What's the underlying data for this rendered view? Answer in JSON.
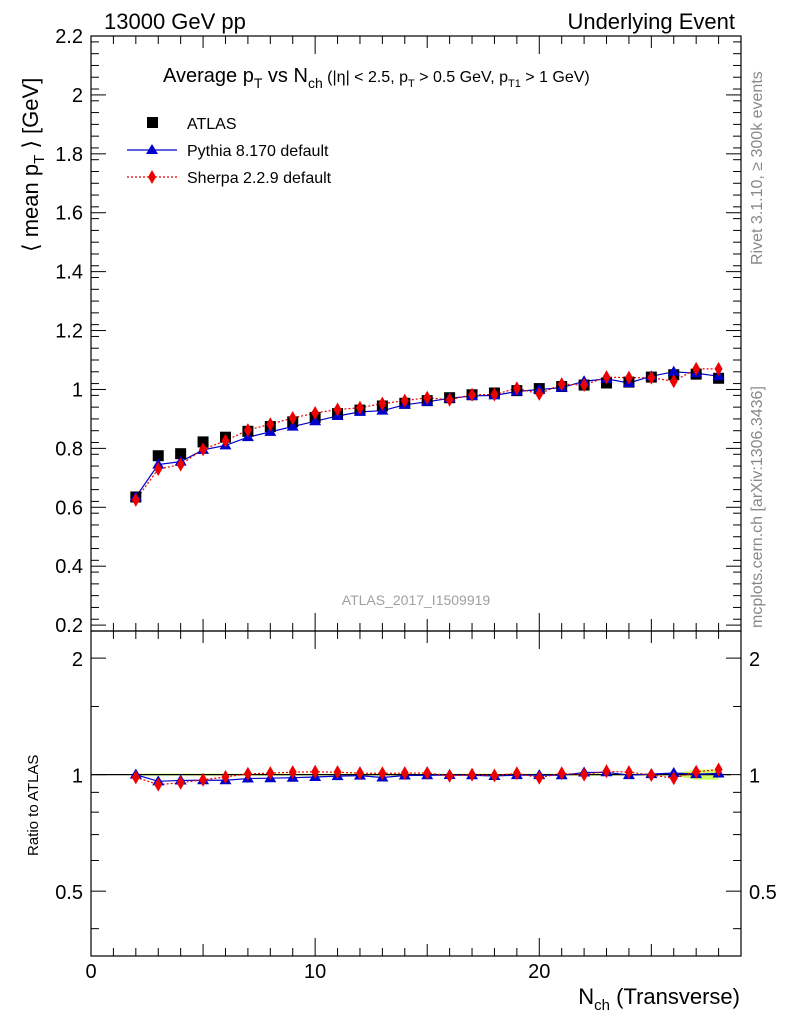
{
  "header": {
    "left": "13000 GeV pp",
    "right": "Underlying Event"
  },
  "side_labels": {
    "rivet": "Rivet 3.1.10, ≥ 300k events",
    "mcplots": "mcplots.cern.ch [arXiv:1306.3436]"
  },
  "chart_data": [
    {
      "type": "scatter",
      "title_parts": {
        "a": "Average p",
        "a_sub": "T",
        "b": " vs N",
        "b_sub": "ch",
        "c": " (|η| < 2.5, p",
        "c_sub": "T",
        "d": " > 0.5 GeV, p",
        "d_sub": "T1",
        "e": " > 1 GeV)"
      },
      "ylabel_parts": {
        "a": "⟨ mean p",
        "sub": "T",
        "b": " ⟩ [GeV]"
      },
      "watermark": "ATLAS_2017_I1509919",
      "xlim": [
        0,
        29
      ],
      "ylim": [
        0.18,
        2.2
      ],
      "yticks": [
        "0.2",
        "0.4",
        "0.6",
        "0.8",
        "1",
        "1.2",
        "1.4",
        "1.6",
        "1.8",
        "2",
        "2.2"
      ],
      "legend_position": "top-left",
      "x": [
        2,
        3,
        4,
        5,
        6,
        7,
        8,
        9,
        10,
        11,
        12,
        13,
        14,
        15,
        16,
        17,
        18,
        19,
        20,
        21,
        22,
        23,
        24,
        25,
        26,
        27,
        28
      ],
      "series": [
        {
          "name": "ATLAS",
          "color": "#000000",
          "marker": "square",
          "values": [
            0.635,
            0.775,
            0.782,
            0.822,
            0.838,
            0.858,
            0.874,
            0.89,
            0.905,
            0.918,
            0.93,
            0.944,
            0.953,
            0.962,
            0.972,
            0.982,
            0.988,
            0.996,
            1.003,
            1.01,
            1.015,
            1.022,
            1.025,
            1.042,
            1.05,
            1.052,
            1.038
          ]
        },
        {
          "name": "Pythia 8.170 default",
          "color": "#0000cc",
          "marker": "triangle",
          "line": "solid",
          "values": [
            0.635,
            0.745,
            0.755,
            0.795,
            0.81,
            0.838,
            0.856,
            0.874,
            0.892,
            0.91,
            0.924,
            0.928,
            0.948,
            0.958,
            0.97,
            0.978,
            0.98,
            0.993,
            1.0,
            1.006,
            1.028,
            1.036,
            1.022,
            1.045,
            1.06,
            1.055,
            1.045
          ]
        },
        {
          "name": "Sherpa 2.2.9 default",
          "color": "#ee0000",
          "marker": "diamond",
          "line": "dotted",
          "values": [
            0.625,
            0.73,
            0.745,
            0.797,
            0.826,
            0.862,
            0.882,
            0.903,
            0.92,
            0.932,
            0.938,
            0.952,
            0.962,
            0.972,
            0.965,
            0.982,
            0.983,
            1.004,
            0.985,
            1.018,
            1.015,
            1.042,
            1.04,
            1.04,
            1.028,
            1.07,
            1.07
          ]
        }
      ]
    },
    {
      "type": "scatter",
      "ylabel": "Ratio to ATLAS",
      "xlabel_parts": {
        "a": "N",
        "sub": "ch",
        "b": " (Transverse)"
      },
      "xlim": [
        0,
        29
      ],
      "ylim": [
        0.34,
        2.35
      ],
      "yscale": "log",
      "yticks": [
        "0.5",
        "1",
        "2"
      ],
      "xticks": [
        "0",
        "10",
        "20"
      ],
      "x": [
        2,
        3,
        4,
        5,
        6,
        7,
        8,
        9,
        10,
        11,
        12,
        13,
        14,
        15,
        16,
        17,
        18,
        19,
        20,
        21,
        22,
        23,
        24,
        25,
        26,
        27,
        28
      ],
      "series": [
        {
          "name": "Pythia 8.170 default",
          "color": "#0000cc",
          "marker": "triangle",
          "line": "solid",
          "values": [
            1.0,
            0.961,
            0.966,
            0.967,
            0.967,
            0.977,
            0.979,
            0.982,
            0.986,
            0.991,
            0.994,
            0.983,
            0.995,
            0.996,
            0.998,
            0.996,
            0.992,
            0.997,
            0.997,
            0.996,
            1.013,
            1.014,
            0.997,
            1.003,
            1.01,
            1.003,
            1.007
          ]
        },
        {
          "name": "Sherpa 2.2.9 default",
          "color": "#ee0000",
          "marker": "diamond",
          "line": "dotted",
          "values": [
            0.984,
            0.942,
            0.953,
            0.97,
            0.986,
            1.005,
            1.009,
            1.015,
            1.017,
            1.015,
            1.009,
            1.008,
            1.009,
            1.01,
            0.993,
            1.0,
            0.995,
            1.008,
            0.982,
            1.008,
            1.0,
            1.02,
            1.015,
            0.998,
            0.979,
            1.017,
            1.031
          ]
        }
      ],
      "band_color": "#ccff66"
    }
  ]
}
